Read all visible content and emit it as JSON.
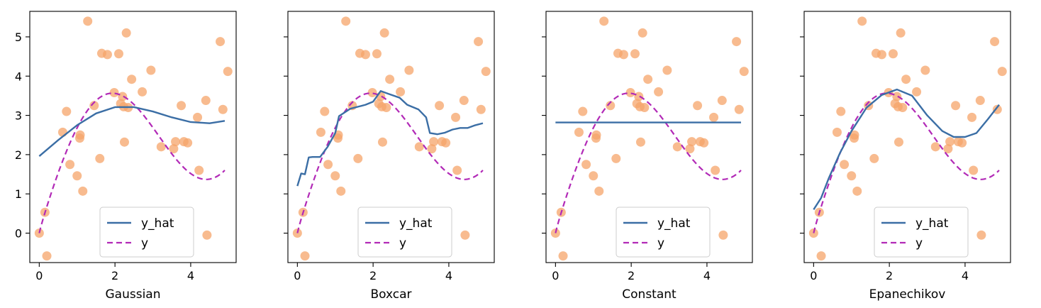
{
  "chart_data": [
    {
      "type": "scatter+line",
      "xlabel": "Gaussian",
      "xlim": [
        -0.25,
        5.2
      ],
      "ylim": [
        -0.75,
        5.65
      ],
      "xticks": [
        0,
        2,
        4
      ],
      "yticks": [
        0,
        1,
        2,
        3,
        4,
        5
      ],
      "legend": [
        "y_hat",
        "y"
      ],
      "legend_position": "lower-center",
      "y_hat": {
        "x": [
          0,
          0.5,
          1,
          1.5,
          2,
          2.5,
          3,
          3.5,
          4,
          4.5,
          4.9
        ],
        "y": [
          1.96,
          2.37,
          2.75,
          3.05,
          3.21,
          3.21,
          3.1,
          2.95,
          2.83,
          2.8,
          2.86
        ]
      }
    },
    {
      "type": "scatter+line",
      "xlabel": "Boxcar",
      "xlim": [
        -0.25,
        5.2
      ],
      "ylim": [
        -0.75,
        5.65
      ],
      "xticks": [
        0,
        2,
        4
      ],
      "yticks": [
        0,
        1,
        2,
        3,
        4,
        5
      ],
      "legend": [
        "y_hat",
        "y"
      ],
      "legend_position": "lower-center",
      "y_hat": {
        "x": [
          0,
          0.1,
          0.2,
          0.3,
          0.4,
          0.6,
          0.8,
          1.0,
          1.1,
          1.4,
          1.8,
          2.0,
          2.2,
          2.4,
          2.7,
          2.9,
          3.2,
          3.4,
          3.5,
          3.7,
          3.9,
          4.1,
          4.3,
          4.5,
          4.7,
          4.9
        ],
        "y": [
          1.2,
          1.52,
          1.5,
          1.93,
          1.94,
          1.94,
          2.2,
          2.55,
          2.98,
          3.17,
          3.27,
          3.35,
          3.62,
          3.55,
          3.45,
          3.27,
          3.15,
          2.95,
          2.55,
          2.52,
          2.56,
          2.64,
          2.68,
          2.68,
          2.75,
          2.8
        ]
      }
    },
    {
      "type": "scatter+line",
      "xlabel": "Constant",
      "xlim": [
        -0.25,
        5.2
      ],
      "ylim": [
        -0.75,
        5.65
      ],
      "xticks": [
        0,
        2,
        4
      ],
      "yticks": [
        0,
        1,
        2,
        3,
        4,
        5
      ],
      "legend": [
        "y_hat",
        "y"
      ],
      "legend_position": "lower-center",
      "y_hat": {
        "x": [
          0,
          4.9
        ],
        "y": [
          2.82,
          2.82
        ]
      }
    },
    {
      "type": "scatter+line",
      "xlabel": "Epanechikov",
      "xlim": [
        -0.25,
        5.2
      ],
      "ylim": [
        -0.75,
        5.65
      ],
      "xticks": [
        0,
        2,
        4
      ],
      "yticks": [
        0,
        1,
        2,
        3,
        4,
        5
      ],
      "legend": [
        "y_hat",
        "y"
      ],
      "legend_position": "lower-center",
      "y_hat": {
        "x": [
          0,
          0.2,
          0.4,
          0.7,
          1.0,
          1.4,
          1.8,
          2.2,
          2.6,
          3.0,
          3.4,
          3.7,
          4.0,
          4.3,
          4.6,
          4.9
        ],
        "y": [
          0.6,
          0.9,
          1.4,
          2.05,
          2.6,
          3.2,
          3.52,
          3.66,
          3.5,
          3.0,
          2.6,
          2.45,
          2.45,
          2.55,
          2.9,
          3.27
        ]
      }
    }
  ],
  "true_curve": {
    "formula": "y = 2*sin(x) + x^0.8",
    "x_range": [
      0,
      4.9
    ]
  },
  "training_points": {
    "x": [
      0.0,
      0.15,
      0.2,
      0.62,
      0.72,
      0.81,
      1.0,
      1.07,
      1.08,
      1.15,
      1.28,
      1.45,
      1.6,
      1.65,
      1.8,
      1.98,
      2.1,
      2.15,
      2.2,
      2.23,
      2.25,
      2.3,
      2.35,
      2.44,
      2.72,
      2.95,
      3.22,
      3.55,
      3.6,
      3.75,
      3.82,
      3.92,
      4.18,
      4.22,
      4.4,
      4.43,
      4.78,
      4.85,
      4.98
    ],
    "y": [
      0.0,
      0.53,
      -0.58,
      2.57,
      3.1,
      1.75,
      1.46,
      2.42,
      2.5,
      1.07,
      5.4,
      3.25,
      1.9,
      4.58,
      4.55,
      3.58,
      4.57,
      3.3,
      3.48,
      3.22,
      2.32,
      5.1,
      3.2,
      3.92,
      3.6,
      4.15,
      2.2,
      2.15,
      2.33,
      3.25,
      2.33,
      2.3,
      2.95,
      1.6,
      3.38,
      -0.05,
      4.88,
      3.15,
      4.12
    ]
  },
  "colors": {
    "y_hat": "#3b6ea5",
    "y": "#b22ab7",
    "points": "#f5a46a",
    "axes": "#000000"
  }
}
